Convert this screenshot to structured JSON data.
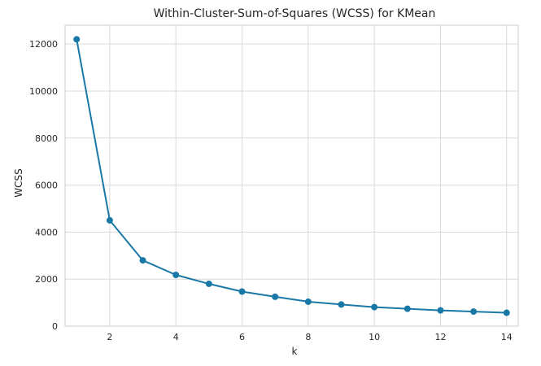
{
  "chart_data": {
    "type": "line",
    "title": "Within-Cluster-Sum-of-Squares (WCSS) for KMean",
    "xlabel": "k",
    "ylabel": "WCSS",
    "xlim": [
      0.65,
      14.35
    ],
    "ylim": [
      0,
      12800
    ],
    "x_ticks": [
      2,
      4,
      6,
      8,
      10,
      12,
      14
    ],
    "y_ticks": [
      0,
      2000,
      4000,
      6000,
      8000,
      10000,
      12000
    ],
    "grid": true,
    "legend": "none",
    "colors": {
      "line": "#1a78a6",
      "marker": "#1a78a6",
      "grid": "#d9d9d9",
      "frame": "#cccccc",
      "background": "#ffffff"
    },
    "series": [
      {
        "x": [
          1,
          2,
          3,
          4,
          5,
          6,
          7,
          8,
          9,
          10,
          11,
          12,
          13,
          14
        ],
        "values": [
          12200,
          4500,
          2800,
          2180,
          1800,
          1470,
          1250,
          1040,
          920,
          810,
          740,
          670,
          620,
          570
        ]
      }
    ]
  }
}
